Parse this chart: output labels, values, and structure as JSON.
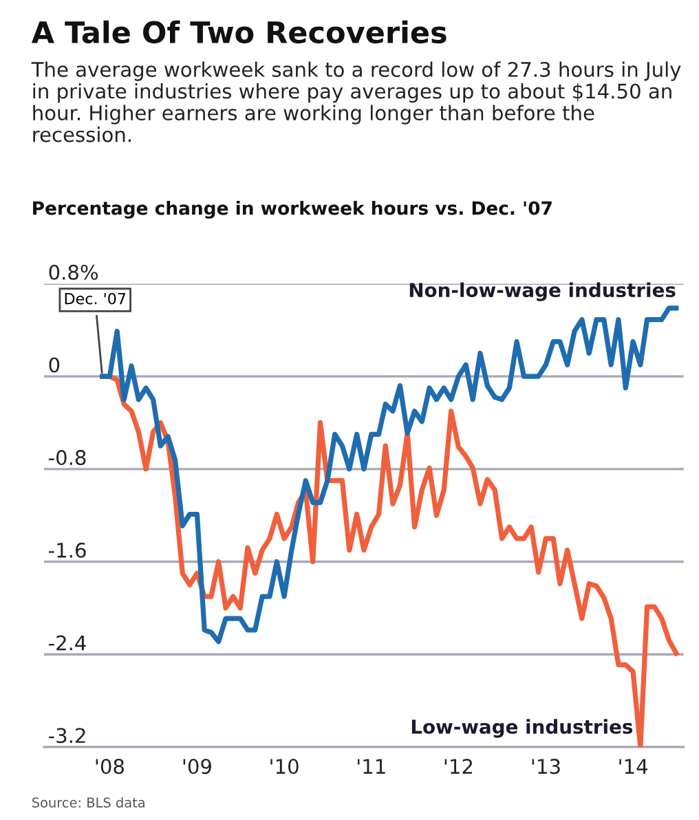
{
  "chart_data": {
    "type": "line",
    "title": "A Tale Of Two Recoveries",
    "subtitle": "The average workweek sank to a record low of 27.3 hours in July in private industries where pay averages up to about $14.50 an hour. Higher earners are working longer than before the recession.",
    "ylabel": "Percentage change in workweek hours vs. Dec. '07",
    "x": [
      "2007-12",
      "2008-01",
      "2008-02",
      "2008-03",
      "2008-04",
      "2008-05",
      "2008-06",
      "2008-07",
      "2008-08",
      "2008-09",
      "2008-10",
      "2008-11",
      "2008-12",
      "2009-01",
      "2009-02",
      "2009-03",
      "2009-04",
      "2009-05",
      "2009-06",
      "2009-07",
      "2009-08",
      "2009-09",
      "2009-10",
      "2009-11",
      "2009-12",
      "2010-01",
      "2010-02",
      "2010-03",
      "2010-04",
      "2010-05",
      "2010-06",
      "2010-07",
      "2010-08",
      "2010-09",
      "2010-10",
      "2010-11",
      "2010-12",
      "2011-01",
      "2011-02",
      "2011-03",
      "2011-04",
      "2011-05",
      "2011-06",
      "2011-07",
      "2011-08",
      "2011-09",
      "2011-10",
      "2011-11",
      "2011-12",
      "2012-01",
      "2012-02",
      "2012-03",
      "2012-04",
      "2012-05",
      "2012-06",
      "2012-07",
      "2012-08",
      "2012-09",
      "2012-10",
      "2012-11",
      "2012-12",
      "2013-01",
      "2013-02",
      "2013-03",
      "2013-04",
      "2013-05",
      "2013-06",
      "2013-07",
      "2013-08",
      "2013-09",
      "2013-10",
      "2013-11",
      "2013-12",
      "2014-01",
      "2014-02",
      "2014-03",
      "2014-04",
      "2014-05",
      "2014-06",
      "2014-07"
    ],
    "series": [
      {
        "name": "Non-low-wage industries",
        "color": "#1f6db0",
        "values": [
          0,
          0,
          0.39,
          -0.2,
          0.09,
          -0.2,
          -0.1,
          -0.2,
          -0.6,
          -0.52,
          -0.72,
          -1.29,
          -1.19,
          -1.19,
          -2.19,
          -2.21,
          -2.29,
          -2.09,
          -2.09,
          -2.09,
          -2.19,
          -2.19,
          -1.9,
          -1.9,
          -1.6,
          -1.9,
          -1.5,
          -1.19,
          -0.9,
          -1.09,
          -1.09,
          -0.9,
          -0.5,
          -0.6,
          -0.8,
          -0.5,
          -0.8,
          -0.5,
          -0.5,
          -0.24,
          -0.3,
          -0.08,
          -0.49,
          -0.3,
          -0.39,
          -0.1,
          -0.2,
          -0.1,
          -0.2,
          0,
          0.1,
          -0.2,
          0.2,
          -0.08,
          -0.18,
          -0.2,
          -0.1,
          0.3,
          0,
          0,
          0,
          0.1,
          0.3,
          0.3,
          0.1,
          0.39,
          0.49,
          0.2,
          0.49,
          0.49,
          0.1,
          0.49,
          -0.1,
          0.3,
          0.1,
          0.49,
          0.49,
          0.49,
          0.59,
          0.59
        ]
      },
      {
        "name": "Low-wage industries",
        "color": "#f0603c",
        "values": [
          0,
          0,
          -0.03,
          -0.24,
          -0.3,
          -0.48,
          -0.8,
          -0.48,
          -0.4,
          -0.56,
          -1.03,
          -1.7,
          -1.8,
          -1.7,
          -1.9,
          -1.9,
          -1.6,
          -2.0,
          -1.9,
          -2.0,
          -1.48,
          -1.7,
          -1.5,
          -1.4,
          -1.19,
          -1.4,
          -1.3,
          -1.09,
          -0.99,
          -1.6,
          -0.4,
          -0.9,
          -0.9,
          -0.9,
          -1.5,
          -1.19,
          -1.5,
          -1.3,
          -1.19,
          -0.6,
          -1.1,
          -0.94,
          -0.49,
          -1.3,
          -0.98,
          -0.79,
          -1.2,
          -0.98,
          -0.3,
          -0.61,
          -0.69,
          -0.79,
          -1.1,
          -0.89,
          -0.98,
          -1.4,
          -1.3,
          -1.4,
          -1.4,
          -1.3,
          -1.69,
          -1.4,
          -1.4,
          -1.79,
          -1.5,
          -1.79,
          -2.09,
          -1.79,
          -1.81,
          -1.91,
          -2.09,
          -2.49,
          -2.49,
          -2.55,
          -3.2,
          -1.99,
          -1.99,
          -2.09,
          -2.28,
          -2.39
        ]
      }
    ],
    "xlim": [
      "2007-04",
      "2014-08"
    ],
    "xticks": [
      {
        "value": "2008-01",
        "label": "'08"
      },
      {
        "value": "2009-01",
        "label": "'09"
      },
      {
        "value": "2010-01",
        "label": "'10"
      },
      {
        "value": "2011-01",
        "label": "'11"
      },
      {
        "value": "2012-01",
        "label": "'12"
      },
      {
        "value": "2013-01",
        "label": "'13"
      },
      {
        "value": "2014-01",
        "label": "'14"
      }
    ],
    "ylim": [
      -3.2,
      0.8
    ],
    "yticks": [
      {
        "value": 0.8,
        "label": "0.8%"
      },
      0,
      -0.8,
      -1.6,
      -2.4,
      -3.2
    ],
    "grid": "y",
    "legend": false,
    "annotations": [
      {
        "text": "Dec. '07",
        "x": "2007-12",
        "y": 0
      },
      "Source: BLS data"
    ]
  }
}
